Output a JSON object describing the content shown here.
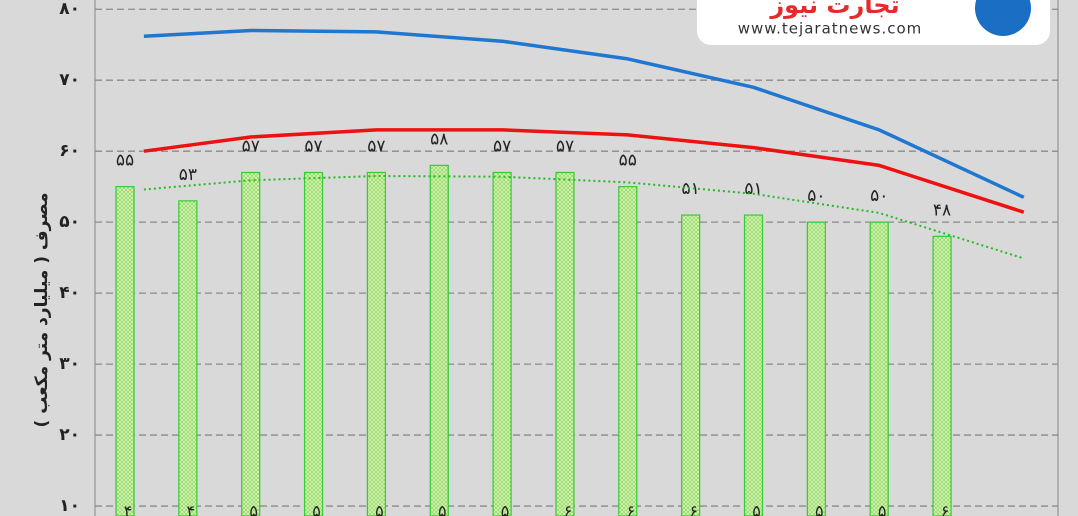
{
  "chart_data": {
    "type": "bar",
    "y_label": "مصرف ( میلیارد متر مکعب )",
    "categories": [
      null,
      null,
      null,
      null,
      null,
      null,
      null,
      null,
      null,
      null,
      null,
      null,
      null,
      null
    ],
    "values": [
      55,
      53,
      57,
      57,
      57,
      58,
      57,
      57,
      55,
      51,
      51,
      50,
      50,
      48
    ],
    "value_labels": [
      "۵۵",
      "۵۳",
      "۵۷",
      "۵۷",
      "۵۷",
      "۵۸",
      "۵۷",
      "۵۷",
      "۵۵",
      "۵۱",
      "۵۱",
      "۵۰",
      "۵۰",
      "۴۸"
    ],
    "bottom_labels": [
      "۴",
      "۴",
      "۵",
      "۵",
      "۵",
      "۵",
      "۵",
      "۶",
      "۶",
      "۶",
      "۵",
      "۵",
      "۵",
      "۶"
    ],
    "color": "#33cc33",
    "lines": [
      {
        "color": "#1f77d0",
        "style": "solid",
        "x": [
          0.3,
          2,
          4,
          6,
          8,
          10,
          12,
          14.3
        ],
        "values": [
          76.2,
          77.0,
          76.8,
          75.5,
          73,
          69,
          63,
          53.5
        ]
      },
      {
        "color": "#ee1111",
        "style": "solid",
        "x": [
          0.3,
          2,
          4,
          6,
          8,
          10,
          12,
          14.3
        ],
        "values": [
          60,
          62,
          63,
          63,
          62.3,
          60.5,
          58,
          51.4
        ]
      },
      {
        "color": "#22bb22",
        "style": "dotted",
        "x": [
          0.3,
          2,
          4,
          6,
          8,
          10,
          12,
          14.3
        ],
        "values": [
          54.6,
          55.9,
          56.5,
          56.4,
          55.6,
          54,
          51.3,
          44.9
        ]
      }
    ],
    "ylim": [
      8.6,
      81.3
    ],
    "yticks": [
      {
        "value": 10,
        "label": "۱۰"
      },
      {
        "value": 20,
        "label": "۲۰"
      },
      {
        "value": 30,
        "label": "۳۰"
      },
      {
        "value": 40,
        "label": "۴۰"
      },
      {
        "value": 50,
        "label": "۵۰"
      },
      {
        "value": 60,
        "label": "۶۰"
      },
      {
        "value": 70,
        "label": "۷۰"
      },
      {
        "value": 80,
        "label": "۸۰"
      }
    ],
    "grid": true
  },
  "logo": {
    "name": "تجارت نیوز",
    "url": "www.tejaratnews.com"
  }
}
